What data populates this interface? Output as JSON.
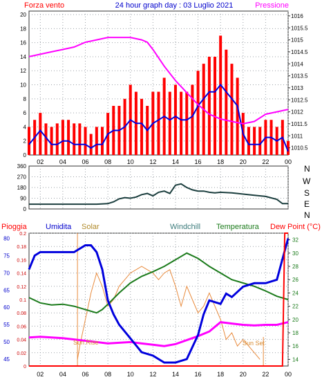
{
  "header": {
    "left_label": "Forza vento",
    "title": "24 hour graph day : 03 Luglio 2021",
    "right_label": "Pressione"
  },
  "x_ticks": [
    "02",
    "04",
    "06",
    "08",
    "10",
    "12",
    "14",
    "16",
    "18",
    "20",
    "22",
    "00"
  ],
  "wind_dir_letters": [
    "N",
    "W",
    "S",
    "E",
    "N"
  ],
  "bottom_header": {
    "pioggia": "Pioggia",
    "umidita": "Umidita",
    "solar": "Solar",
    "windchill": "Windchill",
    "temperatura": "Temperatura",
    "dewpoint": "Dew Point (°C)"
  },
  "annotations": {
    "sunrise": "Sun Rise",
    "sunset": "Sun Set"
  },
  "colors": {
    "wind_gust": "#ff0000",
    "wind_avg": "#0000dd",
    "pressure": "#ff00ff",
    "wind_dir": "#1a3d3d",
    "humidity": "#0000dd",
    "solar": "#e88a3c",
    "windchill": "#3a7a7a",
    "temperature": "#1a7a1a",
    "dewpoint": "#ff00ff",
    "rain": "#ff0000",
    "grid": "#9aa0a6"
  },
  "chart_data": [
    {
      "type": "line",
      "name": "wind-pressure",
      "x_range": [
        1,
        24
      ],
      "y_left": {
        "ticks": [
          0,
          2,
          4,
          6,
          8,
          10,
          12,
          14,
          16,
          18,
          20
        ],
        "range": [
          0,
          20.5
        ]
      },
      "y_right": {
        "ticks": [
          1010.5,
          1011,
          1011.5,
          1012,
          1012.5,
          1013,
          1013.5,
          1014,
          1014.5,
          1015,
          1015.5,
          1016
        ],
        "range": [
          1010.2,
          1016.2
        ]
      },
      "series": [
        {
          "key": "gust",
          "axis": "left",
          "x": [
            1,
            1.5,
            2,
            2.5,
            3,
            3.5,
            4,
            4.5,
            5,
            5.5,
            6,
            6.5,
            7,
            7.5,
            8,
            8.5,
            9,
            9.5,
            10,
            10.5,
            11,
            11.5,
            12,
            12.5,
            13,
            13.5,
            14,
            14.5,
            15,
            15.5,
            16,
            16.5,
            17,
            17.5,
            18,
            18.5,
            19,
            19.5,
            20,
            20.5,
            21,
            21.5,
            22,
            22.5,
            23,
            23.5,
            24
          ],
          "values": [
            4,
            5,
            6,
            4.5,
            4,
            4.5,
            5,
            5,
            4.5,
            4.5,
            4,
            3,
            4,
            4,
            6,
            7,
            7,
            8,
            10,
            9,
            8,
            7,
            9,
            9,
            11,
            9,
            10,
            9,
            9,
            10,
            12,
            13,
            14,
            14,
            17,
            15,
            13,
            11,
            6,
            4,
            4,
            4,
            5,
            5,
            4,
            5,
            2
          ]
        },
        {
          "key": "average",
          "axis": "left",
          "x": [
            1,
            1.5,
            2,
            2.5,
            3,
            3.5,
            4,
            4.5,
            5,
            5.5,
            6,
            6.5,
            7,
            7.5,
            8,
            8.5,
            9,
            9.5,
            10,
            10.5,
            11,
            11.5,
            12,
            12.5,
            13,
            13.5,
            14,
            14.5,
            15,
            15.5,
            16,
            16.5,
            17,
            17.5,
            18,
            18.5,
            19,
            19.5,
            20,
            20.5,
            21,
            21.5,
            22,
            22.5,
            23,
            23.5,
            24
          ],
          "values": [
            1.5,
            2.5,
            3.5,
            2.5,
            1.5,
            1.5,
            2,
            2,
            1.5,
            1.5,
            1.5,
            1,
            1.5,
            1.5,
            3,
            3.5,
            3.5,
            4,
            5,
            4.5,
            4.5,
            3.5,
            4.5,
            5,
            5.5,
            5,
            5.5,
            5,
            5,
            5.5,
            7,
            8,
            9,
            9,
            10,
            9,
            8,
            7,
            3,
            1.5,
            1.5,
            1.5,
            2.5,
            2.5,
            2,
            2.5,
            0.5
          ]
        },
        {
          "key": "pressure",
          "axis": "right",
          "x": [
            1,
            2,
            3,
            4,
            5,
            6,
            7,
            8,
            9,
            10,
            11,
            11.5,
            12,
            13,
            14,
            15,
            16,
            17,
            18,
            19,
            20,
            21,
            22,
            23,
            24
          ],
          "values": [
            1014.3,
            1014.4,
            1014.5,
            1014.6,
            1014.7,
            1014.9,
            1015.0,
            1015.1,
            1015.1,
            1015.1,
            1015.0,
            1014.9,
            1014.6,
            1013.9,
            1013.3,
            1012.8,
            1012.3,
            1011.9,
            1011.7,
            1011.6,
            1011.5,
            1011.6,
            1011.9,
            1012.0,
            1012.1
          ]
        }
      ]
    },
    {
      "type": "line",
      "name": "wind-direction",
      "x_range": [
        1,
        24
      ],
      "y_left": {
        "ticks": [
          0,
          90,
          180,
          270,
          360
        ],
        "range": [
          0,
          360
        ]
      },
      "series": [
        {
          "key": "direction",
          "x": [
            1,
            2,
            3,
            4,
            5,
            6,
            7,
            8,
            8.5,
            9,
            9.5,
            10,
            10.5,
            11,
            11.5,
            12,
            12.5,
            13,
            13.5,
            14,
            14.5,
            15,
            15.5,
            16,
            16.5,
            17,
            17.5,
            18,
            19,
            20,
            21,
            22,
            23,
            23.5,
            24
          ],
          "values": [
            40,
            40,
            40,
            40,
            40,
            40,
            40,
            45,
            60,
            85,
            95,
            90,
            100,
            120,
            130,
            110,
            140,
            150,
            130,
            200,
            210,
            180,
            160,
            150,
            150,
            140,
            135,
            140,
            135,
            125,
            115,
            105,
            80,
            45,
            45
          ]
        }
      ]
    },
    {
      "type": "line",
      "name": "rain-hum-solar-temp",
      "x_range": [
        1,
        24
      ],
      "y_rain": {
        "ticks": [
          0,
          0.02,
          0.04,
          0.06,
          0.08,
          0.1,
          0.12,
          0.14,
          0.16,
          0.18,
          0.2
        ],
        "range": [
          0,
          0.2
        ]
      },
      "y_hum": {
        "ticks": [
          45,
          50,
          55,
          60,
          65,
          70,
          75,
          80
        ],
        "range": [
          43,
          81.5
        ]
      },
      "y_temp": {
        "ticks": [
          14,
          16,
          18,
          20,
          22,
          24,
          26,
          28,
          30,
          32
        ],
        "range": [
          13,
          33
        ]
      },
      "series": [
        {
          "key": "humidity",
          "axis": "hum",
          "x": [
            1,
            1.5,
            2,
            3,
            4,
            5,
            6,
            6.5,
            7,
            7.5,
            8,
            8.5,
            9,
            10,
            11,
            12,
            13,
            14,
            15,
            16,
            16.5,
            17,
            18,
            18.5,
            19,
            20,
            21,
            22,
            23,
            23.5,
            24
          ],
          "values": [
            71,
            75,
            76,
            76,
            76,
            76,
            78,
            78,
            76,
            71,
            62,
            58,
            55,
            51,
            47,
            46,
            44,
            44,
            45,
            52,
            58,
            62,
            61,
            64,
            63,
            66,
            67,
            67,
            68,
            74,
            80
          ]
        },
        {
          "key": "temperature",
          "axis": "temp",
          "x": [
            1,
            2,
            3,
            4,
            5,
            6,
            7,
            7.5,
            8,
            9,
            10,
            11,
            12,
            13,
            14,
            15,
            16,
            17,
            18,
            19,
            20,
            21,
            22,
            23,
            24
          ],
          "values": [
            23.3,
            22.5,
            22.2,
            22.3,
            22.0,
            21.5,
            21.0,
            21.5,
            22.3,
            24.0,
            25.5,
            26.5,
            27.2,
            28.0,
            29.0,
            30.0,
            29.2,
            28.0,
            27.0,
            26.0,
            25.5,
            25.0,
            24.3,
            23.5,
            23.0
          ]
        },
        {
          "key": "dewpoint",
          "axis": "temp",
          "x": [
            1,
            2,
            3,
            4,
            5,
            6,
            7,
            8,
            9,
            10,
            11,
            12,
            13,
            14,
            15,
            16,
            17,
            18,
            19,
            20,
            21,
            22,
            23,
            24
          ],
          "values": [
            17.3,
            17.4,
            17.3,
            17.2,
            17.0,
            16.8,
            16.6,
            16.4,
            16.5,
            16.6,
            16.4,
            16.2,
            16.0,
            16.3,
            16.9,
            17.5,
            18.2,
            19.6,
            19.4,
            19.2,
            19.1,
            19.2,
            19.2,
            19.6
          ]
        },
        {
          "key": "solar",
          "axis": "temp",
          "x": [
            5.3,
            5.5,
            6,
            6.5,
            7,
            7.5,
            8,
            8.5,
            9,
            9.5,
            10,
            10.5,
            11,
            11.5,
            12,
            12.5,
            13,
            13.5,
            14,
            14.5,
            15,
            15.5,
            16,
            16.5,
            17,
            17.5,
            18,
            18.5,
            19,
            19.5,
            20,
            20.5,
            21,
            21.5
          ],
          "values": [
            14,
            16,
            20,
            24,
            27,
            25,
            22,
            23,
            25,
            26,
            27,
            27.5,
            28,
            27.5,
            27,
            26,
            27,
            27.5,
            25,
            22,
            25,
            23,
            21,
            22,
            24,
            22,
            20,
            17,
            18,
            16,
            17,
            16,
            15,
            14
          ]
        },
        {
          "key": "rain",
          "axis": "rain",
          "x": [
            1,
            23.5,
            23.7,
            24
          ],
          "values": [
            0,
            0,
            0.2,
            0.2
          ]
        }
      ]
    }
  ]
}
